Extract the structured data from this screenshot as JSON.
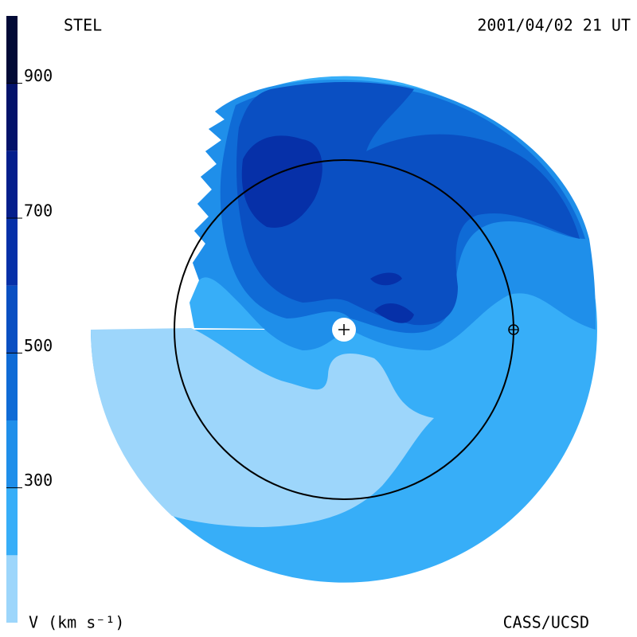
{
  "chart_data": {
    "type": "contour",
    "observatory": "STEL",
    "timestamp": "2001/04/02 21 UT",
    "credit": "CASS/UCSD",
    "colorbar": {
      "label": "V (km s⁻¹)",
      "levels": [
        100,
        200,
        300,
        400,
        500,
        600,
        700,
        800,
        900,
        1000
      ],
      "colors": [
        "#9dd6fb",
        "#37aef8",
        "#1f8fea",
        "#0f6bd6",
        "#0a4fc2",
        "#0630a8",
        "#041e8c",
        "#03126a",
        "#020a36"
      ],
      "lim": [
        100,
        1000
      ],
      "ticks": [
        300,
        500,
        700,
        900
      ]
    }
  }
}
